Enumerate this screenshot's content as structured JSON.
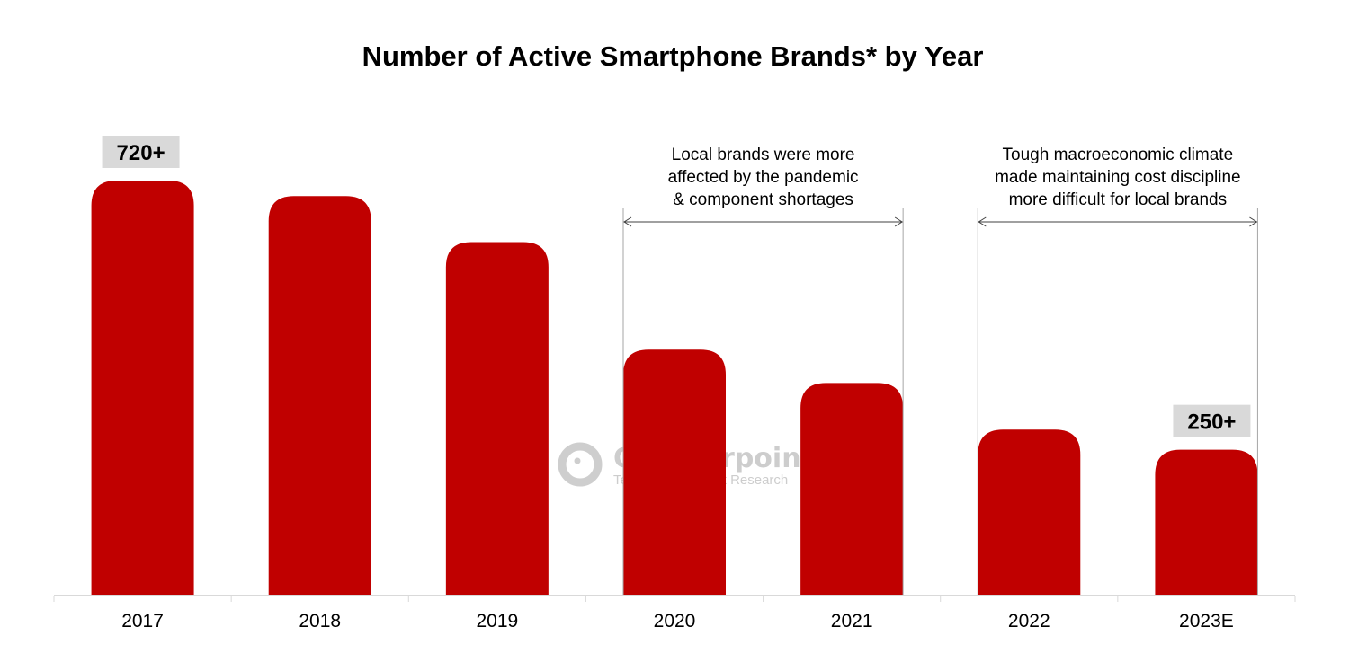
{
  "chart_data": {
    "type": "bar",
    "title": "Number of Active Smartphone Brands* by Year",
    "xlabel": "",
    "ylabel": "",
    "categories": [
      "2017",
      "2018",
      "2019",
      "2020",
      "2021",
      "2022",
      "2023E"
    ],
    "values": [
      720,
      693,
      613,
      426,
      368,
      287,
      252
    ],
    "ylim": [
      0,
      800
    ],
    "grid": false,
    "bar_color": "#C00000",
    "data_labels": [
      {
        "category": "2017",
        "text": "720+"
      },
      {
        "category": "2023E",
        "text": "250+"
      }
    ],
    "annotations": [
      {
        "from": "2020",
        "to": "2021",
        "lines": [
          "Local brands were more",
          "affected by the pandemic",
          "& component shortages"
        ]
      },
      {
        "from": "2022",
        "to": "2023E",
        "lines": [
          "Tough macroeconomic climate",
          "made maintaining cost discipline",
          "more difficult for local brands"
        ]
      }
    ]
  },
  "watermark": {
    "brand": "Counterpoint",
    "tagline": "Technology Market Research"
  }
}
